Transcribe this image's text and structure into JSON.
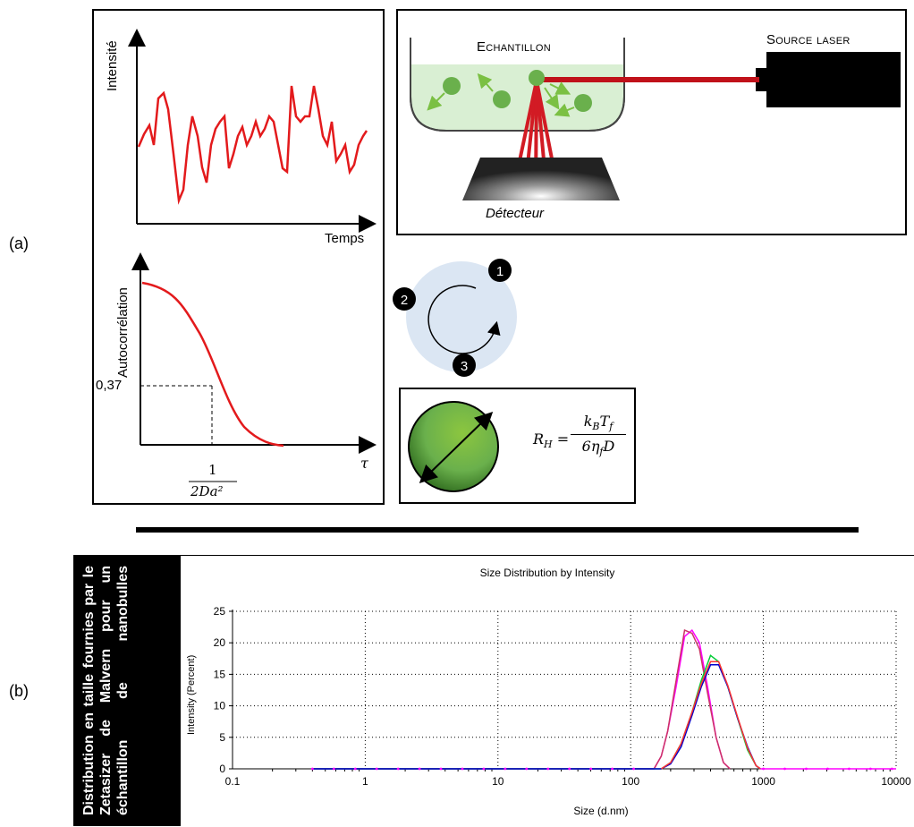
{
  "panel_labels": {
    "a": "(a)",
    "b": "(b)"
  },
  "signal_plot": {
    "ylabel": "Intensité",
    "xlabel": "Temps"
  },
  "autocorr_plot": {
    "ylabel": "Autocorrélation",
    "xlabel": "τ",
    "y_marker": "0,37",
    "x_marker_num": "1",
    "x_marker_den": "2Da²"
  },
  "setup": {
    "sample": "Echantillon",
    "laser": "Source laser",
    "detector": "Détecteur"
  },
  "cycle": {
    "steps": [
      "1",
      "2",
      "3"
    ]
  },
  "formula": {
    "lhs": "R",
    "lhs_sub": "H",
    "num": "k",
    "num_sub1": "B",
    "num_t": "T",
    "num_sub2": "f",
    "den": "6η",
    "den_sub": "f",
    "den_d": "D"
  },
  "side_caption": "Distribution en taille fournies par le Zetasizer de Malvern pour un échantillon de nanobulles",
  "chart_data": {
    "type": "line",
    "title": "Size Distribution by Intensity",
    "xlabel": "Size (d.nm)",
    "ylabel": "Intensity (Percent)",
    "x_scale": "log",
    "xlim": [
      0.1,
      10000
    ],
    "ylim": [
      0,
      25
    ],
    "x_ticks": [
      "0.1",
      "1",
      "10",
      "100",
      "1000",
      "10000"
    ],
    "y_ticks": [
      "0",
      "5",
      "10",
      "15",
      "20",
      "25"
    ],
    "grid": true,
    "series": [
      {
        "color": "#ff00ff",
        "x": [
          0.4,
          150,
          170,
          190,
          220,
          255,
          290,
          330,
          380,
          440,
          500,
          560
        ],
        "values": [
          0,
          0,
          2,
          6,
          13,
          21,
          22,
          20,
          13,
          5,
          1,
          0
        ]
      },
      {
        "color": "#cc3366",
        "x": [
          0.4,
          150,
          170,
          190,
          220,
          255,
          290,
          330,
          380,
          440,
          500,
          560
        ],
        "values": [
          0,
          0,
          2,
          6,
          14,
          22,
          21.5,
          19,
          12,
          5,
          1,
          0
        ]
      },
      {
        "color": "#00cc33",
        "x": [
          0.4,
          170,
          200,
          240,
          290,
          340,
          400,
          460,
          540,
          640,
          760,
          880,
          950
        ],
        "values": [
          0,
          0,
          1,
          4,
          9,
          14,
          18,
          17,
          13,
          8,
          3,
          0.5,
          0
        ]
      },
      {
        "color": "#0000cc",
        "x": [
          0.4,
          170,
          200,
          240,
          290,
          340,
          400,
          460,
          540,
          640,
          760,
          880,
          950
        ],
        "values": [
          0,
          0,
          0.8,
          3.5,
          8.5,
          13,
          16.5,
          16.5,
          13,
          8,
          3.5,
          0.5,
          0
        ]
      },
      {
        "color": "#ff3333",
        "x": [
          170,
          200,
          240,
          290,
          340,
          400,
          460,
          540,
          640,
          760,
          880,
          950
        ],
        "values": [
          0,
          1,
          4,
          9,
          13.5,
          17,
          17,
          13.2,
          8.2,
          3.3,
          0.5,
          0
        ]
      },
      {
        "color": "#ff00ff",
        "x": [
          950,
          10000
        ],
        "values": [
          0,
          0
        ]
      }
    ]
  },
  "colors": {
    "trace": "#e31a1c",
    "particle": "#6ab04c",
    "liquid": "#d9efd3",
    "cycle_bg": "#dbe6f3"
  }
}
